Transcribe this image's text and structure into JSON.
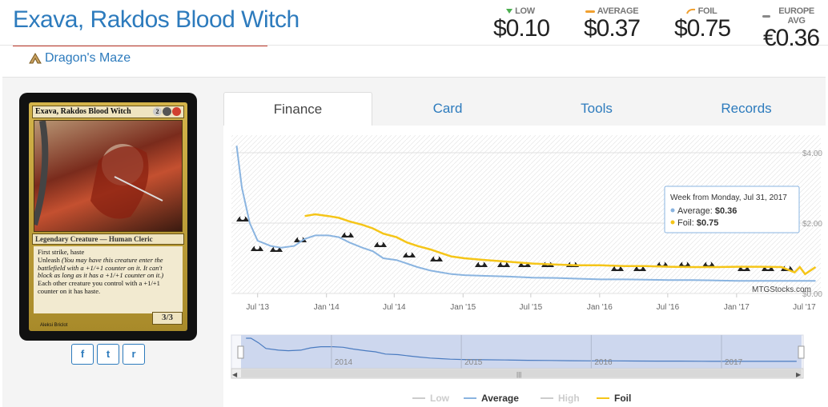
{
  "card": {
    "title": "Exava, Rakdos Blood Witch",
    "set_name": "Dragon's Maze",
    "image": {
      "name": "Exava, Rakdos Blood Witch",
      "mana_generic": "2",
      "type_line": "Legendary Creature — Human Cleric",
      "rules_1": "First strike, haste",
      "rules_2_prefix": "Unleash ",
      "rules_2_reminder": "(You may have this creature enter the battlefield with a +1/+1 counter on it. It can't block as long as it has a +1/+1 counter on it.)",
      "rules_3": "Each other creature you control with a +1/+1 counter on it has haste.",
      "power_toughness": "3/3",
      "artist": "Aleksi Briclot"
    }
  },
  "prices": [
    {
      "label": "LOW",
      "value": "$0.10",
      "marker": "triangle-down",
      "color": "#4caf50"
    },
    {
      "label": "AVERAGE",
      "value": "$0.37",
      "marker": "dash",
      "color": "#f0a030"
    },
    {
      "label": "FOIL",
      "value": "$0.75",
      "marker": "curve-arrow",
      "color": "#f0a030"
    },
    {
      "label": "EUROPE AVG",
      "value": "€0.36",
      "marker": "dash",
      "color": "#888888"
    }
  ],
  "share": [
    {
      "icon": "facebook-icon",
      "glyph": "f"
    },
    {
      "icon": "twitter-icon",
      "glyph": "t"
    },
    {
      "icon": "reddit-icon",
      "glyph": "r"
    }
  ],
  "tabs": [
    "Finance",
    "Card",
    "Tools",
    "Records"
  ],
  "active_tab": "Finance",
  "chart_data": {
    "type": "line",
    "x_ticks": [
      "Jul '13",
      "Jan '14",
      "Jul '14",
      "Jan '15",
      "Jul '15",
      "Jan '16",
      "Jul '16",
      "Jan '17",
      "Jul '17"
    ],
    "y_ticks": [
      "$0.00",
      "$2.00",
      "$4.00"
    ],
    "ylim": [
      0,
      4.5
    ],
    "watermark": "MTGStocks.com",
    "series": [
      {
        "name": "Low",
        "color": "#cccccc",
        "x": [],
        "y": []
      },
      {
        "name": "Average",
        "color": "#8ab4e0",
        "x": [
          "2013-05-06",
          "2013-05-20",
          "2013-06-10",
          "2013-07-01",
          "2013-08-05",
          "2013-09-02",
          "2013-10-07",
          "2013-11-04",
          "2013-12-02",
          "2014-01-06",
          "2014-02-03",
          "2014-03-03",
          "2014-04-07",
          "2014-05-05",
          "2014-06-02",
          "2014-07-07",
          "2014-08-04",
          "2014-09-01",
          "2014-10-06",
          "2014-11-03",
          "2014-12-01",
          "2015-01-05",
          "2015-03-02",
          "2015-05-04",
          "2015-07-06",
          "2015-09-07",
          "2015-11-02",
          "2016-01-04",
          "2016-03-07",
          "2016-05-02",
          "2016-07-04",
          "2016-09-05",
          "2016-11-07",
          "2017-01-02",
          "2017-03-06",
          "2017-05-01",
          "2017-07-31"
        ],
        "y": [
          4.2,
          3.0,
          2.0,
          1.5,
          1.35,
          1.3,
          1.35,
          1.55,
          1.65,
          1.65,
          1.6,
          1.45,
          1.3,
          1.2,
          1.0,
          0.95,
          0.85,
          0.75,
          0.65,
          0.6,
          0.55,
          0.52,
          0.5,
          0.48,
          0.45,
          0.44,
          0.42,
          0.4,
          0.4,
          0.39,
          0.38,
          0.38,
          0.37,
          0.36,
          0.36,
          0.36,
          0.36
        ]
      },
      {
        "name": "High",
        "color": "#cccccc",
        "x": [],
        "y": []
      },
      {
        "name": "Foil",
        "color": "#f5c518",
        "x": [
          "2013-11-04",
          "2013-12-02",
          "2014-01-06",
          "2014-02-03",
          "2014-03-03",
          "2014-04-07",
          "2014-05-05",
          "2014-06-02",
          "2014-07-07",
          "2014-08-04",
          "2014-09-01",
          "2014-10-06",
          "2014-11-03",
          "2014-12-01",
          "2015-01-05",
          "2015-03-02",
          "2015-05-04",
          "2015-07-06",
          "2015-09-07",
          "2015-11-02",
          "2016-01-04",
          "2016-03-07",
          "2016-05-02",
          "2016-07-04",
          "2016-09-05",
          "2016-11-07",
          "2017-01-02",
          "2017-03-06",
          "2017-05-01",
          "2017-06-05",
          "2017-06-19",
          "2017-07-03",
          "2017-07-31"
        ],
        "y": [
          2.2,
          2.25,
          2.2,
          2.15,
          2.05,
          1.95,
          1.85,
          1.7,
          1.6,
          1.45,
          1.35,
          1.25,
          1.15,
          1.05,
          1.0,
          0.95,
          0.9,
          0.85,
          0.82,
          0.8,
          0.8,
          0.78,
          0.78,
          0.76,
          0.75,
          0.75,
          0.76,
          0.76,
          0.75,
          0.6,
          0.75,
          0.55,
          0.75
        ]
      }
    ],
    "tooltip": {
      "header": "Week from Monday, Jul 31, 2017",
      "items": [
        {
          "label": "Average:",
          "value": "$0.36",
          "color": "#8ab4e0"
        },
        {
          "label": "Foil:",
          "value": "$0.75",
          "color": "#f5c518"
        }
      ]
    },
    "navigator_years": [
      "2014",
      "2015",
      "2016",
      "2017"
    ],
    "legend": [
      {
        "name": "Low",
        "color": "#cccccc",
        "enabled": false
      },
      {
        "name": "Average",
        "color": "#8ab4e0",
        "enabled": true
      },
      {
        "name": "High",
        "color": "#cccccc",
        "enabled": false
      },
      {
        "name": "Foil",
        "color": "#f5c518",
        "enabled": true
      }
    ],
    "set_symbol_count": 21
  },
  "colors": {
    "link": "#2d7bbd",
    "title_rule": "#c0392b"
  }
}
